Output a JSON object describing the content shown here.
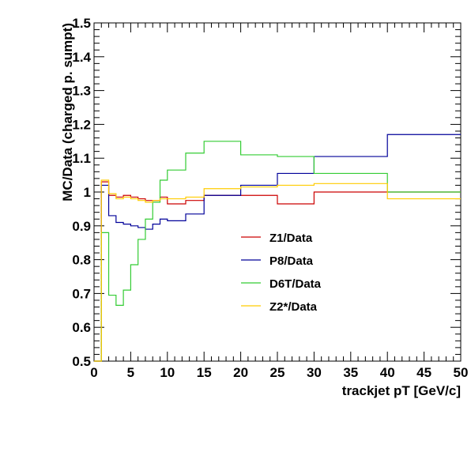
{
  "chart_data": {
    "type": "line",
    "title": "",
    "xlabel": "trackjet pT [GeV/c]",
    "ylabel": "MC/Data (charged p. sumpt)",
    "xlim": [
      0,
      50
    ],
    "ylim": [
      0.5,
      1.5
    ],
    "x_ticks": [
      0,
      5,
      10,
      15,
      20,
      25,
      30,
      35,
      40,
      45,
      50
    ],
    "x_tick_labels": [
      "0",
      "5",
      "10",
      "15",
      "20",
      "25",
      "30",
      "35",
      "40",
      "45",
      "50"
    ],
    "y_ticks": [
      0.5,
      0.6,
      0.7,
      0.8,
      0.9,
      1.0,
      1.1,
      1.2,
      1.3,
      1.4,
      1.5
    ],
    "y_tick_labels": [
      "0.5",
      "0.6",
      "0.7",
      "0.8",
      "0.9",
      "1",
      "1.1",
      "1.2",
      "1.3",
      "1.4",
      "1.5"
    ],
    "grid": false,
    "legend_position": "center",
    "bin_edges": [
      0,
      1,
      2,
      3,
      4,
      5,
      6,
      7,
      8,
      9,
      10,
      12.5,
      15,
      20,
      25,
      30,
      40,
      50
    ],
    "series": [
      {
        "name": "Z1/Data",
        "color": "#cc0000",
        "values": [
          0.5,
          1.03,
          0.99,
          0.985,
          0.99,
          0.985,
          0.98,
          0.975,
          0.975,
          0.985,
          0.965,
          0.975,
          0.99,
          0.99,
          0.965,
          1.0,
          1.0
        ]
      },
      {
        "name": "P8/Data",
        "color": "#000099",
        "values": [
          0.5,
          1.02,
          0.93,
          0.91,
          0.905,
          0.9,
          0.895,
          0.89,
          0.905,
          0.92,
          0.915,
          0.935,
          0.99,
          1.02,
          1.055,
          1.105,
          1.17
        ]
      },
      {
        "name": "D6T/Data",
        "color": "#33cc33",
        "values": [
          0.5,
          0.88,
          0.695,
          0.665,
          0.71,
          0.785,
          0.86,
          0.92,
          0.97,
          1.035,
          1.065,
          1.115,
          1.15,
          1.11,
          1.105,
          1.055,
          1.0
        ]
      },
      {
        "name": "Z2*/Data",
        "color": "#ffcc00",
        "values": [
          0.5,
          1.035,
          0.995,
          0.98,
          0.985,
          0.98,
          0.975,
          0.97,
          0.975,
          0.98,
          0.98,
          0.985,
          1.01,
          1.015,
          1.02,
          1.025,
          0.98
        ]
      }
    ]
  }
}
